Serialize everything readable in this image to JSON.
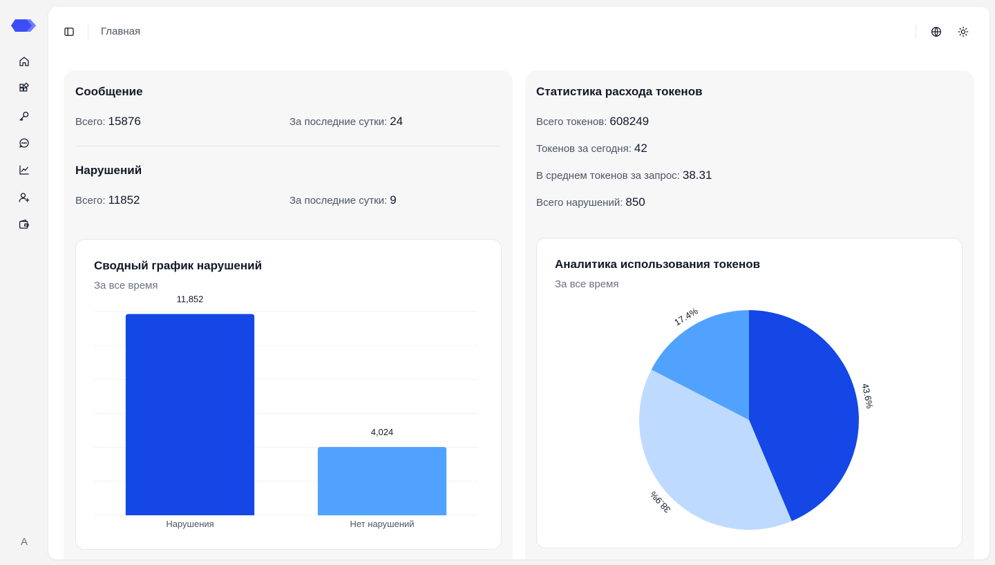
{
  "sidebar": {
    "logo": "logo-icon",
    "items": [
      {
        "icon": "home-icon",
        "name": "home"
      },
      {
        "icon": "widgets-icon",
        "name": "apps"
      },
      {
        "icon": "key-icon",
        "name": "keys"
      },
      {
        "icon": "chat-icon",
        "name": "messages"
      },
      {
        "icon": "chart-line-icon",
        "name": "analytics"
      },
      {
        "icon": "user-plus-icon",
        "name": "users"
      },
      {
        "icon": "wallet-icon",
        "name": "wallet"
      }
    ],
    "avatar_initial": "A"
  },
  "header": {
    "breadcrumb": "Главная",
    "sidebar_toggle_icon": "sidebar-toggle-icon",
    "language_icon": "globe-icon",
    "theme_icon": "sun-icon"
  },
  "messages": {
    "title": "Сообщение",
    "total_label": "Всего:",
    "total_value": "15876",
    "day_label": "За последние сутки:",
    "day_value": "24"
  },
  "violations": {
    "title": "Нарушений",
    "total_label": "Всего:",
    "total_value": "11852",
    "day_label": "За последние сутки:",
    "day_value": "9"
  },
  "tokens": {
    "title": "Статистика расхода токенов",
    "rows": [
      {
        "label": "Всего токенов:",
        "value": "608249"
      },
      {
        "label": "Токенов за сегодня:",
        "value": "42"
      },
      {
        "label": "В среднем токенов за запрос:",
        "value": "38.31"
      },
      {
        "label": "Всего нарушений:",
        "value": "850"
      }
    ]
  },
  "bar_chart": {
    "title": "Сводный график нарушений",
    "subtitle": "За все время"
  },
  "pie_chart": {
    "title": "Аналитика использования токенов",
    "subtitle": "За все время"
  },
  "chart_data": [
    {
      "type": "bar",
      "title": "Сводный график нарушений",
      "subtitle": "За все время",
      "categories": [
        "Нарушения",
        "Нет нарушений"
      ],
      "values": [
        11852,
        4024
      ],
      "value_labels": [
        "11,852",
        "4,024"
      ],
      "colors": [
        "#1447e6",
        "#51a2ff"
      ],
      "ylim": [
        0,
        12000
      ],
      "grid": true,
      "xlabel": "",
      "ylabel": ""
    },
    {
      "type": "pie",
      "title": "Аналитика использования токенов",
      "subtitle": "За все время",
      "values": [
        43.6,
        38.9,
        17.4
      ],
      "labels": [
        "43.6%",
        "38.9%",
        "17.4%"
      ],
      "colors": [
        "#1447e6",
        "#bedbff",
        "#51a2ff"
      ]
    }
  ]
}
